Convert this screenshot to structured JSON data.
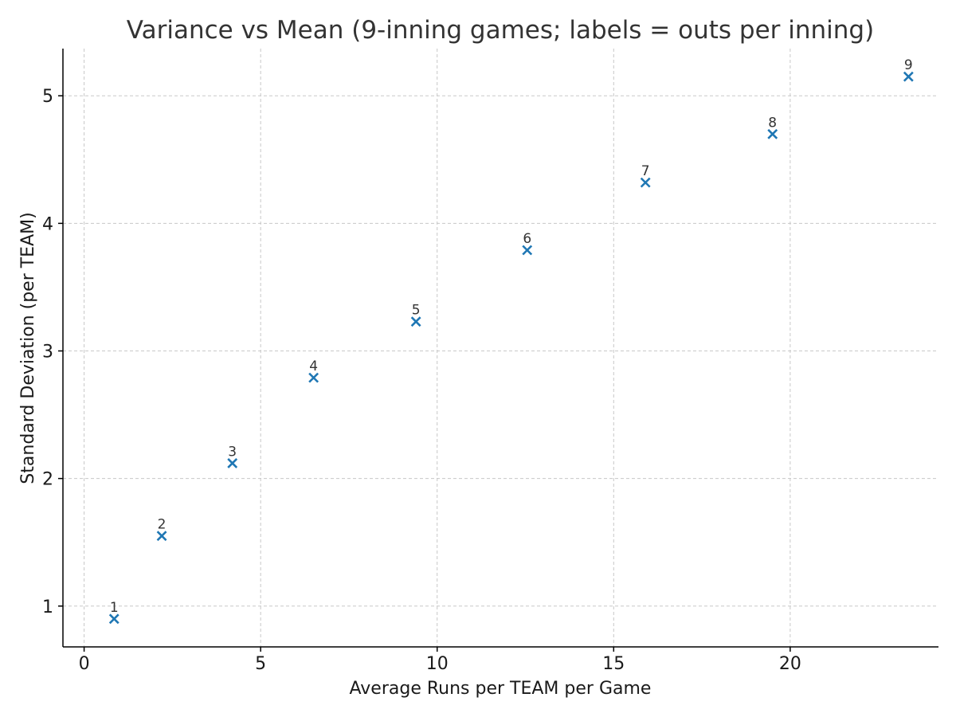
{
  "chart_data": {
    "type": "scatter",
    "title": "Variance vs Mean (9-inning games; labels = outs per inning)",
    "xlabel": "Average Runs per TEAM per Game",
    "ylabel": "Standard Deviation (per TEAM)",
    "xlim": [
      -0.6,
      24.2
    ],
    "ylim": [
      0.68,
      5.37
    ],
    "xticks": [
      0,
      5,
      10,
      15,
      20
    ],
    "yticks": [
      1,
      2,
      3,
      4,
      5
    ],
    "grid": true,
    "marker": "x",
    "color": "#1f77b4",
    "points": [
      {
        "label": "1",
        "x": 0.85,
        "y": 0.9
      },
      {
        "label": "2",
        "x": 2.2,
        "y": 1.55
      },
      {
        "label": "3",
        "x": 4.2,
        "y": 2.12
      },
      {
        "label": "4",
        "x": 6.5,
        "y": 2.79
      },
      {
        "label": "5",
        "x": 9.4,
        "y": 3.23
      },
      {
        "label": "6",
        "x": 12.55,
        "y": 3.79
      },
      {
        "label": "7",
        "x": 15.9,
        "y": 4.32
      },
      {
        "label": "8",
        "x": 19.5,
        "y": 4.7
      },
      {
        "label": "9",
        "x": 23.35,
        "y": 5.15
      }
    ]
  }
}
